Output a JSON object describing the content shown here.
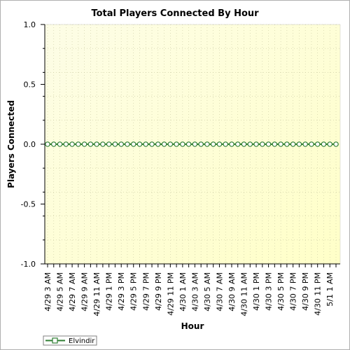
{
  "chart_data": {
    "type": "line",
    "title": "Total Players Connected By Hour",
    "xlabel": "Hour",
    "ylabel": "Players Connected",
    "ylim": [
      -1.0,
      1.0
    ],
    "yticks": [
      "1.0",
      "0.5",
      "0.0",
      "-0.5",
      "-1.0"
    ],
    "ytick_values": [
      1.0,
      0.5,
      0.0,
      -0.5,
      -1.0
    ],
    "grid": true,
    "legend_placement": "bottom-left",
    "x_tick_labels": [
      "4/29 3 AM",
      "4/29 5 AM",
      "4/29 7 AM",
      "4/29 9 AM",
      "4/29 11 AM",
      "4/29 1 PM",
      "4/29 3 PM",
      "4/29 5 PM",
      "4/29 7 PM",
      "4/29 9 PM",
      "4/29 11 PM",
      "4/30 1 AM",
      "4/30 3 AM",
      "4/30 5 AM",
      "4/30 7 AM",
      "4/30 9 AM",
      "4/30 11 AM",
      "4/30 1 PM",
      "4/30 3 PM",
      "4/30 5 PM",
      "4/30 7 PM",
      "4/30 9 PM",
      "4/30 11 PM",
      "5/1 1 AM"
    ],
    "series": [
      {
        "name": "Elvindir",
        "color": "#2e7d32",
        "values": [
          0,
          0,
          0,
          0,
          0,
          0,
          0,
          0,
          0,
          0,
          0,
          0,
          0,
          0,
          0,
          0,
          0,
          0,
          0,
          0,
          0,
          0,
          0,
          0,
          0,
          0,
          0,
          0,
          0,
          0,
          0,
          0,
          0,
          0,
          0,
          0,
          0,
          0,
          0,
          0,
          0,
          0,
          0,
          0,
          0,
          0,
          0,
          0
        ]
      }
    ],
    "colors": {
      "plot_background_top": "#fdfde6",
      "plot_background_bottom": "#ffffc8",
      "grid": "#c8c8a0",
      "axis": "#000000"
    }
  }
}
